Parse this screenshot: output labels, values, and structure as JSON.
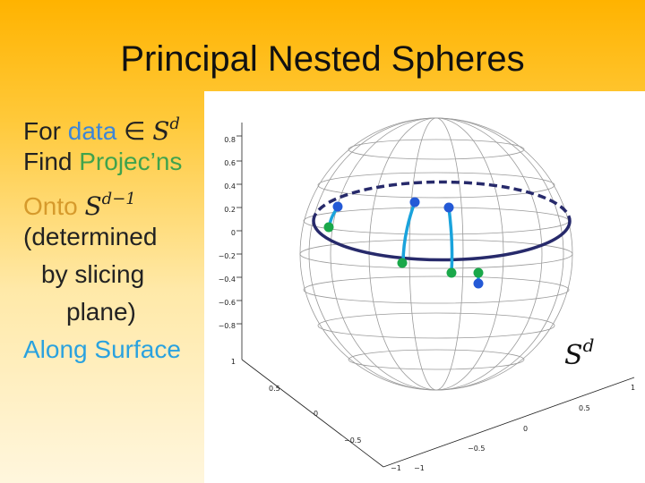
{
  "slide": {
    "title": "Principal Nested Spheres"
  },
  "bullets": {
    "l1_a": "For ",
    "l1_b": "data",
    "l1_c": " ∈ ",
    "l1_S": "S",
    "l1_sup": "d",
    "l2_a": "Find ",
    "l2_b": "Projec’ns",
    "l3_a": "Onto ",
    "l3_S": "S",
    "l3_sup": "d−1",
    "l4": "(determined",
    "l5": "by slicing",
    "l6": "plane)",
    "l7": "Along Surface"
  },
  "figure": {
    "sphere_label": "S",
    "sphere_label_sup": "d",
    "z_ticks": [
      "0.8",
      "0.6",
      "0.4",
      "0.2",
      "0",
      "−0.2",
      "−0.4",
      "−0.6",
      "−0.8"
    ],
    "z_tick_bottom": "1",
    "x_ticks": [
      "0.5",
      "0",
      "−0.5",
      "−1"
    ],
    "y_ticks": [
      "1",
      "0.5",
      "0",
      "−0.5",
      "−1"
    ],
    "colors": {
      "sphere_grid": "#9a9a9a",
      "subsphere": "#272a6b",
      "projection_path": "#1aa3dc",
      "data_point": "#2459d6",
      "projected_point": "#1aa84a"
    }
  }
}
